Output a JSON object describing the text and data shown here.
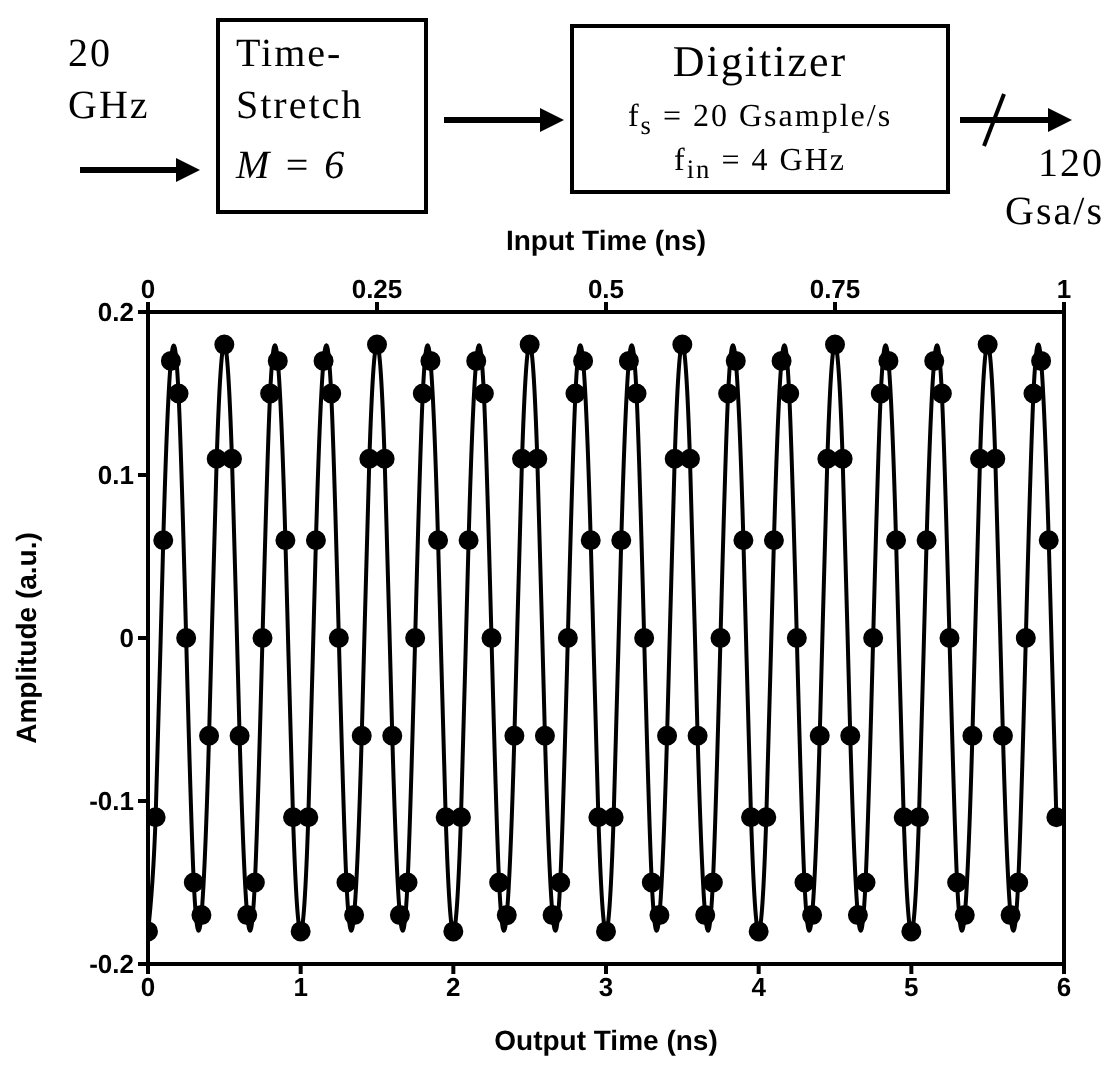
{
  "chart_data": {
    "type": "line",
    "xlabel": "Output Time (ns)",
    "ylabel": "Amplitude (a.u.)",
    "x2label": "Input Time (ns)",
    "annotations": [
      "20 GHz",
      "Time-Stretch",
      "M = 6",
      "Digitizer",
      "f$_{s}$ = 20 Gsample/s",
      "f$_{in}$ = 4 GHz",
      "120 Gsa/s"
    ],
    "xlim": [
      0,
      6
    ],
    "xticks": [
      0,
      1,
      2,
      3,
      4,
      5,
      6
    ],
    "x2lim": [
      0,
      1
    ],
    "x2ticks": [
      0,
      0.25,
      0.5,
      0.75,
      1
    ],
    "ylim": [
      -0.2,
      0.2
    ],
    "yticks": [
      -0.2,
      -0.1,
      0,
      0.1,
      0.2
    ],
    "marker": "circle",
    "line_style": "solid",
    "series": [
      {
        "color": "#000000",
        "x": [
          0,
          0.05,
          0.1,
          0.15,
          0.2,
          0.25,
          0.3,
          0.35,
          0.4,
          0.45,
          0.5,
          0.55,
          0.6,
          0.65,
          0.7,
          0.75,
          0.8,
          0.85,
          0.9,
          0.95,
          1,
          1.05,
          1.1,
          1.15,
          1.2,
          1.25,
          1.3,
          1.35,
          1.4,
          1.45,
          1.5,
          1.55,
          1.6,
          1.65,
          1.7,
          1.75,
          1.8,
          1.85,
          1.9,
          1.95,
          2,
          2.05,
          2.1,
          2.15,
          2.2,
          2.25,
          2.3,
          2.35,
          2.4,
          2.45,
          2.5,
          2.55,
          2.6,
          2.65,
          2.7,
          2.75,
          2.8,
          2.85,
          2.9,
          2.95,
          3,
          3.05,
          3.1,
          3.15,
          3.2,
          3.25,
          3.3,
          3.35,
          3.4,
          3.45,
          3.5,
          3.55,
          3.6,
          3.65,
          3.7,
          3.75,
          3.8,
          3.85,
          3.9,
          3.95,
          4,
          4.05,
          4.1,
          4.15,
          4.2,
          4.25,
          4.3,
          4.35,
          4.4,
          4.45,
          4.5,
          4.55,
          4.6,
          4.65,
          4.7,
          4.75,
          4.8,
          4.85,
          4.9,
          4.95,
          5,
          5.05,
          5.1,
          5.15,
          5.2,
          5.25,
          5.3,
          5.35,
          5.4,
          5.45,
          5.5,
          5.55,
          5.6,
          5.65,
          5.7,
          5.75,
          5.8,
          5.85,
          5.9,
          5.95
        ],
        "values": [
          -0.18,
          -0.11,
          0.06,
          0.17,
          0.15,
          0,
          -0.15,
          -0.17,
          -0.06,
          0.11,
          0.18,
          0.11,
          -0.06,
          -0.17,
          -0.15,
          0,
          0.15,
          0.17,
          0.06,
          -0.11,
          -0.18,
          -0.11,
          0.06,
          0.17,
          0.15,
          0,
          -0.15,
          -0.17,
          -0.06,
          0.11,
          0.18,
          0.11,
          -0.06,
          -0.17,
          -0.15,
          0,
          0.15,
          0.17,
          0.06,
          -0.11,
          -0.18,
          -0.11,
          0.06,
          0.17,
          0.15,
          0,
          -0.15,
          -0.17,
          -0.06,
          0.11,
          0.18,
          0.11,
          -0.06,
          -0.17,
          -0.15,
          0,
          0.15,
          0.17,
          0.06,
          -0.11,
          -0.18,
          -0.11,
          0.06,
          0.17,
          0.15,
          0,
          -0.15,
          -0.17,
          -0.06,
          0.11,
          0.18,
          0.11,
          -0.06,
          -0.17,
          -0.15,
          0,
          0.15,
          0.17,
          0.06,
          -0.11,
          -0.18,
          -0.11,
          0.06,
          0.17,
          0.15,
          0,
          -0.15,
          -0.17,
          -0.06,
          0.11,
          0.18,
          0.11,
          -0.06,
          -0.17,
          -0.15,
          0,
          0.15,
          0.17,
          0.06,
          -0.11,
          -0.18,
          -0.11,
          0.06,
          0.17,
          0.15,
          0,
          -0.15,
          -0.17,
          -0.06,
          0.11,
          0.18,
          0.11,
          -0.06,
          -0.17,
          -0.15,
          0,
          0.15,
          0.17,
          0.06,
          -0.11
        ]
      }
    ]
  }
}
